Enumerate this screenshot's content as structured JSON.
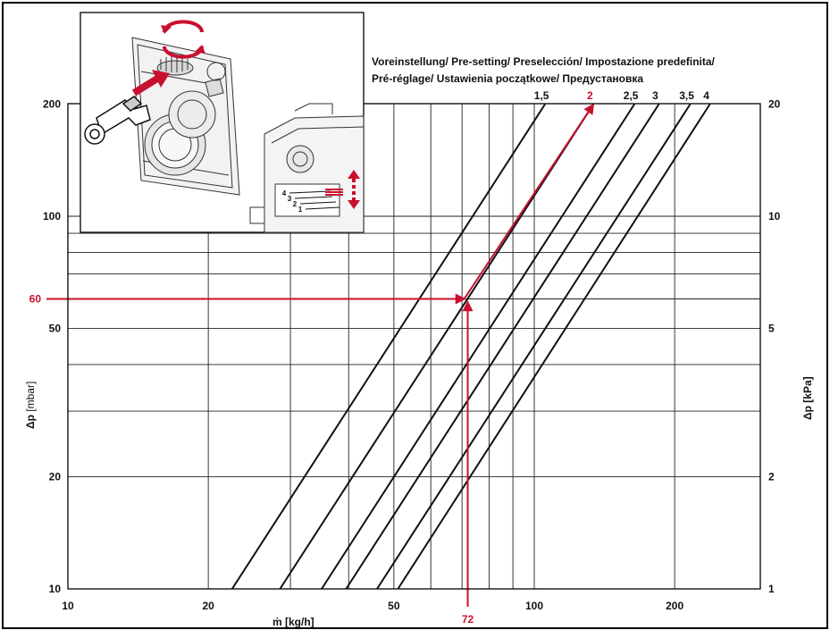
{
  "chart_data": {
    "type": "line",
    "title_line1": "Voreinstellung/ Pre-setting/ Preselección/ Impostazione predefinita/",
    "title_line2": "Pré-réglage/ Ustawienia początkowe/ Предустановка",
    "xlabel_main": "ṁ",
    "xlabel_unit": " [kg/h]",
    "ylabel_main": "Δp",
    "ylabel_unit": " [mbar]",
    "y2label": "Δp [kPa]",
    "x_scale": "log",
    "y_scale": "log",
    "xlim": [
      10,
      300
    ],
    "ylim": [
      10,
      200
    ],
    "x_ticks": [
      10,
      20,
      50,
      100,
      200
    ],
    "x_tick_labels": [
      "10",
      "20",
      "50",
      "100",
      "200"
    ],
    "y_ticks": [
      10,
      20,
      50,
      100,
      200
    ],
    "y_tick_labels": [
      "10",
      "20",
      "50",
      "100",
      "200"
    ],
    "y2_ticks": [
      10,
      20,
      50,
      100,
      200
    ],
    "y2_tick_labels": [
      "1",
      "2",
      "5",
      "10",
      "20"
    ],
    "grid_x": [
      20,
      30,
      40,
      50,
      60,
      70,
      80,
      90,
      100,
      200
    ],
    "grid_y": [
      20,
      30,
      40,
      50,
      60,
      70,
      80,
      90,
      100
    ],
    "series": [
      {
        "name": "1,5",
        "x": [
          22.5,
          105.5
        ],
        "y": [
          10,
          200
        ]
      },
      {
        "name": "2",
        "x": [
          28.5,
          134
        ],
        "y": [
          10,
          200
        ]
      },
      {
        "name": "2,5",
        "x": [
          35,
          164
        ],
        "y": [
          10,
          200
        ]
      },
      {
        "name": "3",
        "x": [
          39.5,
          185
        ],
        "y": [
          10,
          200
        ]
      },
      {
        "name": "3,5",
        "x": [
          46,
          216
        ],
        "y": [
          10,
          200
        ]
      },
      {
        "name": "4",
        "x": [
          51,
          238
        ],
        "y": [
          10,
          200
        ]
      }
    ],
    "example": {
      "x": 72,
      "y": 60,
      "x_label": "72",
      "y_label": "60",
      "setting_label": "2",
      "setting_end": {
        "x": 134,
        "y": 200
      },
      "color": "#c8102e"
    },
    "inset_labels": [
      "4",
      "3",
      "2",
      "1"
    ],
    "accent_color": "#c8102e",
    "line_color": "#111111"
  }
}
